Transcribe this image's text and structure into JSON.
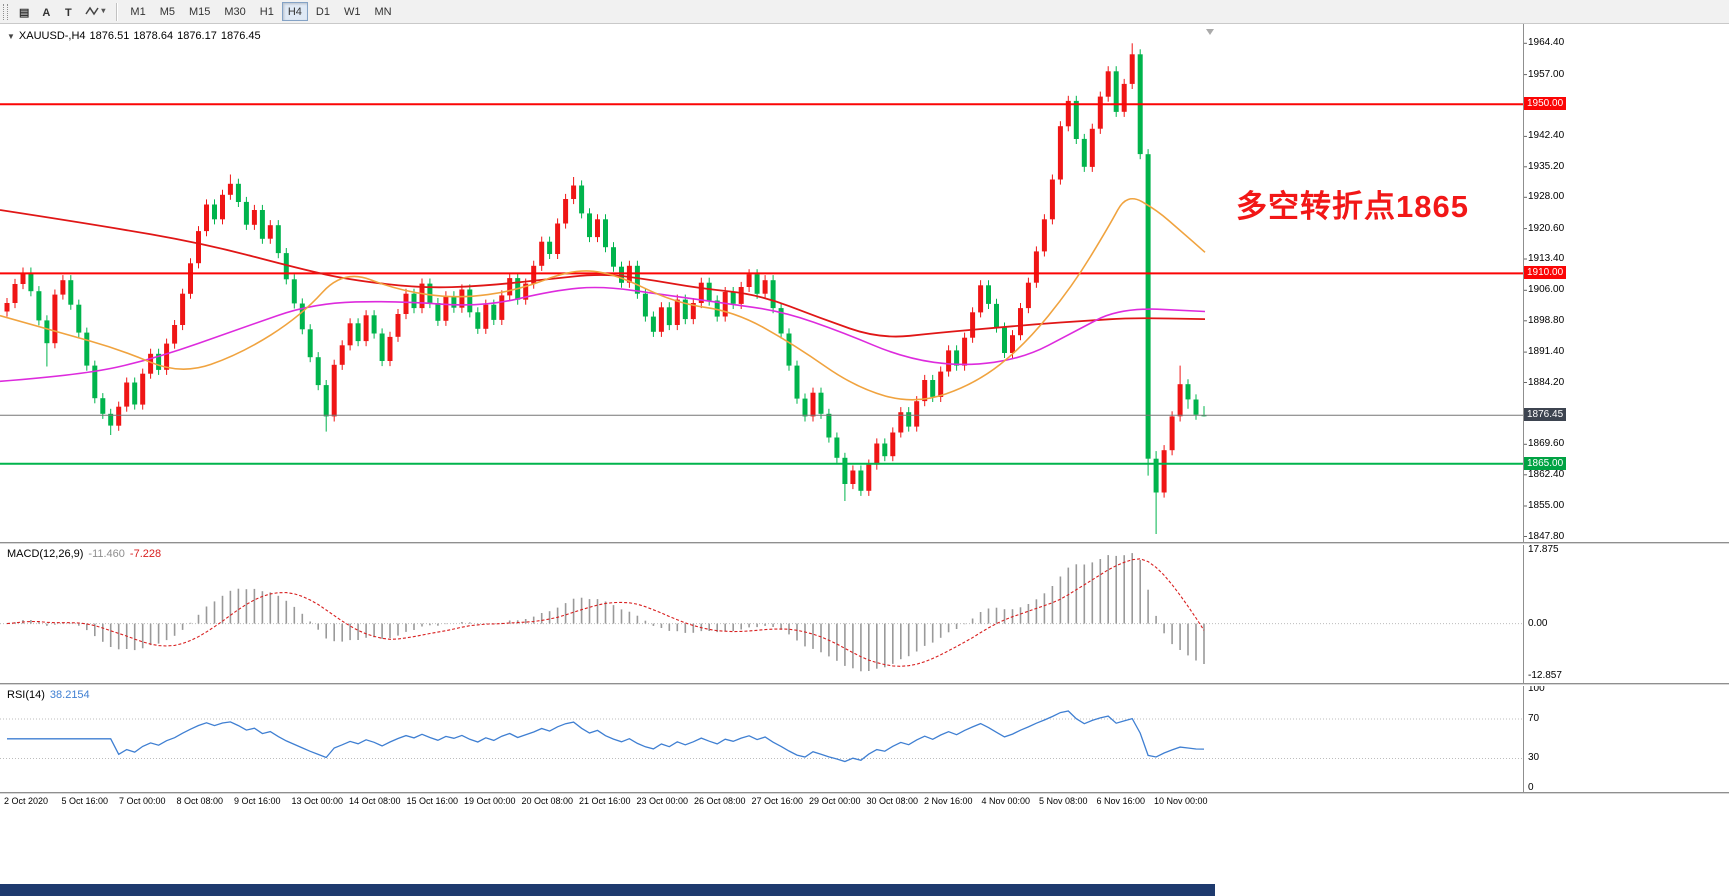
{
  "icons": {
    "collapse": "▼",
    "dropdown": "▾",
    "shift_marker": "chart-shift-triangle"
  },
  "toolbar": {
    "tools": [
      {
        "name": "chart-windows-icon",
        "glyph": "▤"
      },
      {
        "name": "label-tool",
        "glyph": "A"
      },
      {
        "name": "text-tool",
        "glyph": "T"
      },
      {
        "name": "polyline-tool",
        "glyph": "zigzag"
      }
    ],
    "timeframes": {
      "labels": [
        "M1",
        "M5",
        "M15",
        "M30",
        "H1",
        "H4",
        "D1",
        "W1",
        "MN"
      ],
      "active": "H4"
    }
  },
  "chart": {
    "ohlc": {
      "symbol_period": "XAUUSD-,H4",
      "open": "1876.51",
      "high": "1878.64",
      "low": "1876.17",
      "close": "1876.45"
    },
    "annotation": {
      "text": "多空转折点1865",
      "color": "#f21717"
    }
  },
  "chart_data": {
    "type": "candlestick",
    "symbol": "XAUUSD-",
    "timeframe": "H4",
    "up_color": "#ef1515",
    "down_color": "#00b44c",
    "y_axis": {
      "range": [
        1846.5,
        1968.5
      ],
      "ticks": [
        "1964.40",
        "1957.00",
        "1950.00",
        "1942.40",
        "1935.20",
        "1928.00",
        "1920.60",
        "1913.40",
        "1906.00",
        "1898.80",
        "1891.40",
        "1884.20",
        "1876.80",
        "1869.60",
        "1862.40",
        "1855.00",
        "1847.80"
      ]
    },
    "x_axis": {
      "labels": [
        "2 Oct 2020",
        "5 Oct 16:00",
        "7 Oct 00:00",
        "8 Oct 08:00",
        "9 Oct 16:00",
        "13 Oct 00:00",
        "14 Oct 08:00",
        "15 Oct 16:00",
        "19 Oct 00:00",
        "20 Oct 08:00",
        "21 Oct 16:00",
        "23 Oct 00:00",
        "26 Oct 08:00",
        "27 Oct 16:00",
        "29 Oct 00:00",
        "30 Oct 08:00",
        "2 Nov 16:00",
        "4 Nov 00:00",
        "5 Nov 08:00",
        "6 Nov 16:00",
        "10 Nov 00:00"
      ]
    },
    "hlines": [
      {
        "price": 1950.0,
        "label": "1950.00",
        "color": "#fb0505",
        "width": 2,
        "badge_bg": "#fb0505"
      },
      {
        "price": 1910.0,
        "label": "1910.00",
        "color": "#fb0505",
        "width": 2,
        "badge_bg": "#fb0505"
      },
      {
        "price": 1876.45,
        "label": "1876.45",
        "color": "#777777",
        "width": 1,
        "badge_bg": "#3d4450"
      },
      {
        "price": 1865.0,
        "label": "1865.00",
        "color": "#00b44c",
        "width": 2,
        "badge_bg": "#00a243"
      }
    ],
    "moving_averages": [
      {
        "name": "ma-slow-red",
        "color": "#e01616",
        "width": 1.8,
        "points": [
          [
            0,
            1925
          ],
          [
            0.08,
            1921.5
          ],
          [
            0.17,
            1917
          ],
          [
            0.25,
            1911
          ],
          [
            0.29,
            1908.5
          ],
          [
            0.35,
            1906.5
          ],
          [
            0.4,
            1907
          ],
          [
            0.45,
            1908.5
          ],
          [
            0.5,
            1910
          ],
          [
            0.54,
            1908.5
          ],
          [
            0.58,
            1906.5
          ],
          [
            0.63,
            1905
          ],
          [
            0.68,
            1899.5
          ],
          [
            0.73,
            1894.5
          ],
          [
            0.78,
            1896
          ],
          [
            0.82,
            1897
          ],
          [
            0.86,
            1898
          ],
          [
            0.9,
            1898.8
          ],
          [
            0.94,
            1899.5
          ],
          [
            1,
            1899.2
          ]
        ]
      },
      {
        "name": "ma-mid-magenta",
        "color": "#dd2bdd",
        "width": 1.6,
        "points": [
          [
            0,
            1884.5
          ],
          [
            0.07,
            1886
          ],
          [
            0.13,
            1890
          ],
          [
            0.2,
            1897
          ],
          [
            0.26,
            1903
          ],
          [
            0.33,
            1903.5
          ],
          [
            0.4,
            1902
          ],
          [
            0.46,
            1906
          ],
          [
            0.5,
            1907
          ],
          [
            0.55,
            1905
          ],
          [
            0.6,
            1903
          ],
          [
            0.65,
            1901
          ],
          [
            0.7,
            1896
          ],
          [
            0.75,
            1890
          ],
          [
            0.8,
            1888
          ],
          [
            0.85,
            1890
          ],
          [
            0.89,
            1896
          ],
          [
            0.93,
            1902
          ],
          [
            1,
            1901
          ]
        ]
      },
      {
        "name": "ma-fast-orange",
        "color": "#f0a33f",
        "width": 1.6,
        "points": [
          [
            0,
            1900
          ],
          [
            0.05,
            1896
          ],
          [
            0.1,
            1892
          ],
          [
            0.15,
            1886
          ],
          [
            0.2,
            1891
          ],
          [
            0.25,
            1900
          ],
          [
            0.285,
            1911
          ],
          [
            0.33,
            1906
          ],
          [
            0.38,
            1904
          ],
          [
            0.43,
            1906
          ],
          [
            0.475,
            1911
          ],
          [
            0.51,
            1910
          ],
          [
            0.56,
            1903
          ],
          [
            0.61,
            1901
          ],
          [
            0.66,
            1893
          ],
          [
            0.71,
            1883
          ],
          [
            0.76,
            1879
          ],
          [
            0.81,
            1884
          ],
          [
            0.85,
            1893
          ],
          [
            0.89,
            1907
          ],
          [
            0.92,
            1921
          ],
          [
            0.935,
            1929
          ],
          [
            0.96,
            1925
          ],
          [
            0.98,
            1920
          ],
          [
            1,
            1915
          ]
        ]
      }
    ],
    "candles": [
      [
        1901.0,
        1904.2,
        1899.8,
        1903.0
      ],
      [
        1903.0,
        1908.7,
        1901.8,
        1907.5
      ],
      [
        1907.5,
        1911.4,
        1906.3,
        1910.2
      ],
      [
        1910.2,
        1911.4,
        1904.6,
        1905.8
      ],
      [
        1905.8,
        1907.0,
        1897.7,
        1898.9
      ],
      [
        1898.9,
        1900.1,
        1888.0,
        1893.5
      ],
      [
        1893.5,
        1906.2,
        1892.3,
        1905.0
      ],
      [
        1905.0,
        1909.6,
        1903.8,
        1908.4
      ],
      [
        1908.4,
        1909.6,
        1901.4,
        1902.6
      ],
      [
        1902.6,
        1903.8,
        1894.8,
        1896.0
      ],
      [
        1896.0,
        1897.2,
        1887.0,
        1888.2
      ],
      [
        1888.2,
        1889.4,
        1879.3,
        1880.5
      ],
      [
        1880.5,
        1881.7,
        1875.6,
        1876.8
      ],
      [
        1876.8,
        1878.0,
        1871.8,
        1874.0
      ],
      [
        1874.0,
        1879.7,
        1872.8,
        1878.5
      ],
      [
        1878.5,
        1885.4,
        1877.3,
        1884.2
      ],
      [
        1884.2,
        1885.4,
        1877.8,
        1879.0
      ],
      [
        1879.0,
        1887.5,
        1877.8,
        1886.3
      ],
      [
        1886.3,
        1892.2,
        1885.1,
        1891.0
      ],
      [
        1891.0,
        1892.2,
        1886.0,
        1887.2
      ],
      [
        1887.2,
        1894.6,
        1886.0,
        1893.4
      ],
      [
        1893.4,
        1899.0,
        1892.2,
        1897.8
      ],
      [
        1897.8,
        1906.4,
        1896.6,
        1905.2
      ],
      [
        1905.2,
        1913.6,
        1904.0,
        1912.4
      ],
      [
        1912.4,
        1921.2,
        1911.2,
        1920.0
      ],
      [
        1920.0,
        1927.5,
        1918.8,
        1926.3
      ],
      [
        1926.3,
        1927.5,
        1921.6,
        1922.8
      ],
      [
        1922.8,
        1929.8,
        1921.6,
        1928.6
      ],
      [
        1928.6,
        1933.4,
        1927.4,
        1931.2
      ],
      [
        1931.2,
        1932.4,
        1925.7,
        1926.9
      ],
      [
        1926.9,
        1928.1,
        1920.3,
        1921.5
      ],
      [
        1921.5,
        1926.2,
        1920.3,
        1925.0
      ],
      [
        1925.0,
        1926.2,
        1917.0,
        1918.2
      ],
      [
        1918.2,
        1922.6,
        1917.0,
        1921.4
      ],
      [
        1921.4,
        1922.6,
        1913.6,
        1914.8
      ],
      [
        1914.8,
        1916.0,
        1907.4,
        1908.6
      ],
      [
        1908.6,
        1909.8,
        1901.7,
        1902.9
      ],
      [
        1902.9,
        1904.1,
        1895.6,
        1896.8
      ],
      [
        1896.8,
        1898.0,
        1889.0,
        1890.2
      ],
      [
        1890.2,
        1891.4,
        1882.4,
        1883.6
      ],
      [
        1883.6,
        1884.8,
        1872.6,
        1876.2
      ],
      [
        1876.2,
        1889.6,
        1875.0,
        1888.4
      ],
      [
        1888.4,
        1894.2,
        1887.2,
        1893.0
      ],
      [
        1893.0,
        1899.4,
        1891.8,
        1898.2
      ],
      [
        1898.2,
        1899.4,
        1892.8,
        1894.0
      ],
      [
        1894.0,
        1901.3,
        1892.8,
        1900.1
      ],
      [
        1900.1,
        1901.3,
        1894.6,
        1895.8
      ],
      [
        1895.8,
        1897.0,
        1888.1,
        1889.3
      ],
      [
        1889.3,
        1896.2,
        1888.1,
        1895.0
      ],
      [
        1895.0,
        1901.6,
        1893.8,
        1900.4
      ],
      [
        1900.4,
        1906.4,
        1899.2,
        1905.2
      ],
      [
        1905.2,
        1906.4,
        1900.6,
        1901.8
      ],
      [
        1901.8,
        1908.8,
        1900.6,
        1907.6
      ],
      [
        1907.6,
        1908.8,
        1901.8,
        1903.0
      ],
      [
        1903.0,
        1904.2,
        1897.6,
        1898.8
      ],
      [
        1898.8,
        1905.8,
        1897.6,
        1904.6
      ],
      [
        1904.6,
        1905.8,
        1900.7,
        1901.9
      ],
      [
        1901.9,
        1907.4,
        1900.7,
        1906.2
      ],
      [
        1906.2,
        1907.4,
        1899.6,
        1900.8
      ],
      [
        1900.8,
        1902.0,
        1895.7,
        1896.9
      ],
      [
        1896.9,
        1903.8,
        1895.7,
        1902.6
      ],
      [
        1902.6,
        1903.8,
        1897.8,
        1899.0
      ],
      [
        1899.0,
        1906.0,
        1897.8,
        1904.8
      ],
      [
        1904.8,
        1910.1,
        1903.6,
        1908.9
      ],
      [
        1908.9,
        1910.1,
        1902.6,
        1903.8
      ],
      [
        1903.8,
        1908.8,
        1902.6,
        1907.6
      ],
      [
        1907.6,
        1913.0,
        1906.4,
        1911.8
      ],
      [
        1911.8,
        1918.7,
        1910.6,
        1917.5
      ],
      [
        1917.5,
        1918.7,
        1913.4,
        1914.6
      ],
      [
        1914.6,
        1923.0,
        1913.4,
        1921.8
      ],
      [
        1921.8,
        1928.8,
        1920.6,
        1927.6
      ],
      [
        1927.6,
        1932.8,
        1926.4,
        1930.8
      ],
      [
        1930.8,
        1932.0,
        1923.0,
        1924.2
      ],
      [
        1924.2,
        1925.4,
        1917.4,
        1918.6
      ],
      [
        1918.6,
        1924.0,
        1917.4,
        1922.8
      ],
      [
        1922.8,
        1924.0,
        1915.0,
        1916.2
      ],
      [
        1916.2,
        1917.4,
        1910.4,
        1911.6
      ],
      [
        1911.6,
        1912.8,
        1906.6,
        1907.8
      ],
      [
        1907.8,
        1913.0,
        1906.6,
        1911.8
      ],
      [
        1911.8,
        1913.0,
        1904.0,
        1905.2
      ],
      [
        1905.2,
        1906.4,
        1898.6,
        1899.8
      ],
      [
        1899.8,
        1901.0,
        1895.0,
        1896.2
      ],
      [
        1896.2,
        1903.2,
        1895.0,
        1902.0
      ],
      [
        1902.0,
        1903.2,
        1896.6,
        1897.8
      ],
      [
        1897.8,
        1905.0,
        1896.6,
        1903.8
      ],
      [
        1903.8,
        1905.0,
        1898.0,
        1899.2
      ],
      [
        1899.2,
        1904.2,
        1898.0,
        1903.0
      ],
      [
        1903.0,
        1909.0,
        1901.8,
        1907.8
      ],
      [
        1907.8,
        1909.0,
        1902.4,
        1903.6
      ],
      [
        1903.6,
        1904.8,
        1898.6,
        1899.8
      ],
      [
        1899.8,
        1906.8,
        1898.6,
        1905.6
      ],
      [
        1905.6,
        1906.8,
        1901.6,
        1902.8
      ],
      [
        1902.8,
        1908.0,
        1901.6,
        1906.8
      ],
      [
        1906.8,
        1911.0,
        1905.6,
        1909.8
      ],
      [
        1909.8,
        1911.0,
        1904.0,
        1905.2
      ],
      [
        1905.2,
        1909.6,
        1904.0,
        1908.4
      ],
      [
        1908.4,
        1909.6,
        1900.6,
        1901.8
      ],
      [
        1901.8,
        1903.0,
        1894.6,
        1895.8
      ],
      [
        1895.8,
        1897.0,
        1887.0,
        1888.2
      ],
      [
        1888.2,
        1889.4,
        1879.2,
        1880.4
      ],
      [
        1880.4,
        1881.6,
        1875.0,
        1876.2
      ],
      [
        1876.2,
        1883.0,
        1875.0,
        1881.8
      ],
      [
        1881.8,
        1883.0,
        1875.6,
        1876.8
      ],
      [
        1876.8,
        1878.0,
        1870.0,
        1871.2
      ],
      [
        1871.2,
        1872.4,
        1865.2,
        1866.4
      ],
      [
        1866.4,
        1867.6,
        1856.2,
        1860.2
      ],
      [
        1860.2,
        1864.6,
        1859.0,
        1863.4
      ],
      [
        1863.4,
        1864.6,
        1857.4,
        1858.6
      ],
      [
        1858.6,
        1866.0,
        1857.4,
        1864.8
      ],
      [
        1864.8,
        1871.0,
        1863.6,
        1869.8
      ],
      [
        1869.8,
        1871.0,
        1865.6,
        1866.8
      ],
      [
        1866.8,
        1873.6,
        1865.6,
        1872.4
      ],
      [
        1872.4,
        1878.4,
        1871.2,
        1877.2
      ],
      [
        1877.2,
        1878.4,
        1872.6,
        1873.8
      ],
      [
        1873.8,
        1881.0,
        1872.6,
        1879.8
      ],
      [
        1879.8,
        1886.0,
        1878.6,
        1884.8
      ],
      [
        1884.8,
        1886.0,
        1879.6,
        1880.8
      ],
      [
        1880.8,
        1888.0,
        1879.6,
        1886.8
      ],
      [
        1886.8,
        1893.0,
        1885.6,
        1891.8
      ],
      [
        1891.8,
        1893.0,
        1887.0,
        1888.2
      ],
      [
        1888.2,
        1896.0,
        1887.0,
        1894.8
      ],
      [
        1894.8,
        1902.0,
        1893.6,
        1900.8
      ],
      [
        1900.8,
        1908.4,
        1899.6,
        1907.2
      ],
      [
        1907.2,
        1908.4,
        1901.6,
        1902.8
      ],
      [
        1902.8,
        1904.0,
        1896.0,
        1897.2
      ],
      [
        1897.2,
        1898.4,
        1890.0,
        1891.2
      ],
      [
        1891.2,
        1896.6,
        1890.0,
        1895.4
      ],
      [
        1895.4,
        1903.0,
        1894.2,
        1901.8
      ],
      [
        1901.8,
        1909.0,
        1900.6,
        1907.8
      ],
      [
        1907.8,
        1916.4,
        1906.6,
        1915.2
      ],
      [
        1915.2,
        1924.0,
        1914.0,
        1922.8
      ],
      [
        1922.8,
        1933.4,
        1921.6,
        1932.2
      ],
      [
        1932.2,
        1946.0,
        1931.0,
        1944.8
      ],
      [
        1944.8,
        1952.0,
        1943.6,
        1950.8
      ],
      [
        1950.8,
        1952.0,
        1940.6,
        1941.8
      ],
      [
        1941.8,
        1943.0,
        1934.0,
        1935.2
      ],
      [
        1935.2,
        1945.4,
        1934.0,
        1944.2
      ],
      [
        1944.2,
        1953.0,
        1943.0,
        1951.8
      ],
      [
        1951.8,
        1959.0,
        1950.6,
        1957.8
      ],
      [
        1957.8,
        1959.0,
        1947.0,
        1948.2
      ],
      [
        1948.2,
        1956.0,
        1947.0,
        1954.8
      ],
      [
        1954.8,
        1964.4,
        1953.6,
        1961.8
      ],
      [
        1961.8,
        1963.0,
        1937.0,
        1938.2
      ],
      [
        1938.2,
        1939.4,
        1862.2,
        1866.2
      ],
      [
        1866.2,
        1868.0,
        1848.4,
        1858.2
      ],
      [
        1858.2,
        1869.4,
        1857.0,
        1868.2
      ],
      [
        1868.2,
        1877.4,
        1867.0,
        1876.2
      ],
      [
        1876.2,
        1888.2,
        1875.0,
        1883.8
      ],
      [
        1883.8,
        1885.0,
        1878.0,
        1880.2
      ],
      [
        1880.2,
        1881.4,
        1875.4,
        1876.6
      ],
      [
        1876.51,
        1878.64,
        1876.17,
        1876.45
      ]
    ],
    "indicators": {
      "macd": {
        "label": "MACD(12,26,9)",
        "value_main": "-11.460",
        "value_signal": "-7.228",
        "ticks": [
          "17.875",
          "0.00",
          "-12.857"
        ],
        "range": [
          -14.5,
          19.2
        ],
        "fast": 12,
        "slow": 26,
        "signal": 9,
        "histogram_color": "#9a9a9a",
        "signal_color": "#d81f1f"
      },
      "rsi": {
        "label": "RSI(14)",
        "value": "38.2154",
        "period": 14,
        "ticks": [
          "100",
          "70",
          "30",
          "0"
        ],
        "levels": [
          70,
          30
        ],
        "line_color": "#3f7fd2"
      }
    }
  }
}
